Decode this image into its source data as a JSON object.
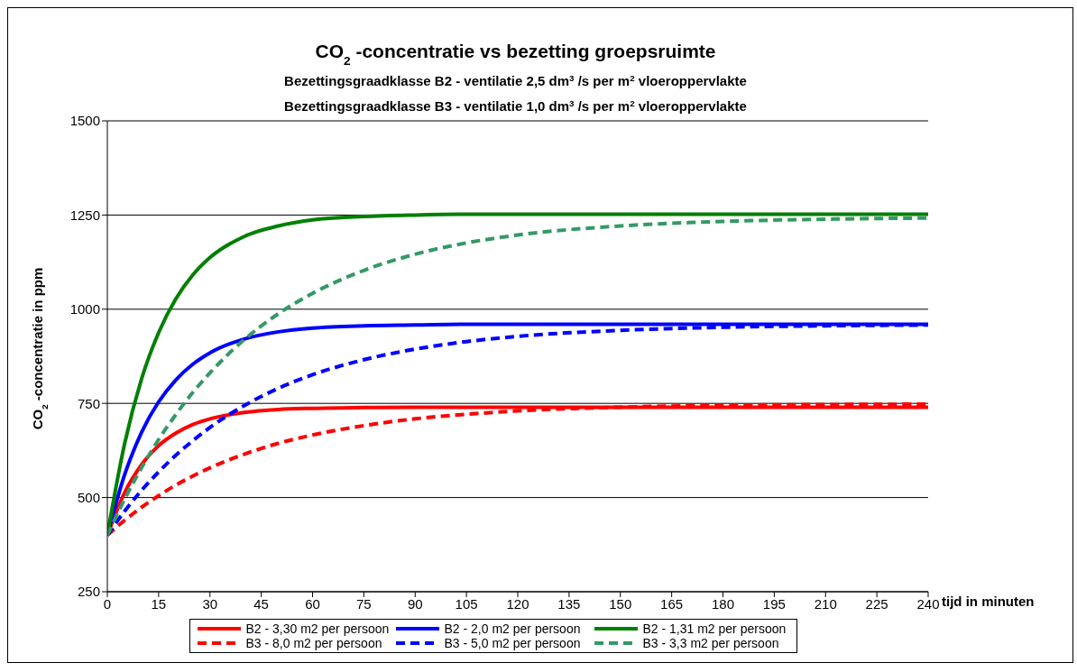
{
  "chart_data": {
    "type": "line",
    "title": "CO$_{2}$-concentratie vs bezetting groepsruimte",
    "subtitle": "Bezettingsgraadklasse B2 - ventilatie 2,5 dm$^{3}$/s per m$^{2}$ vloeroppervlakte\nBezettingsgraadklasse B3 - ventilatie 1,0 dm$^{3}$/s per m$^{2}$ vloeroppervlakte",
    "xlabel": "tijd in minuten",
    "ylabel": "CO$_{2}$-concentratie in ppm",
    "x": [
      0,
      5,
      10,
      15,
      20,
      25,
      30,
      40,
      50,
      60,
      75,
      90,
      105,
      120,
      150,
      180,
      210,
      240
    ],
    "series": [
      {
        "name": "B2 - 3,30 m2 per persoon",
        "color": "#ff0000",
        "line_style": "solid",
        "values": [
          400,
          512,
          587,
          638,
          671,
          694,
          709,
          726,
          734,
          737,
          739,
          740,
          740,
          740,
          740,
          740,
          740,
          740
        ]
      },
      {
        "name": "B2 - 2,0 m2 per persoon",
        "color": "#0000ff",
        "line_style": "solid",
        "values": [
          400,
          559,
          673,
          754,
          812,
          854,
          884,
          921,
          940,
          950,
          956,
          958,
          960,
          960,
          960,
          960,
          960,
          960
        ]
      },
      {
        "name": "B2 - 1,31 m2 per persoon",
        "color": "#008000",
        "line_style": "solid",
        "values": [
          400,
          641,
          815,
          938,
          1027,
          1091,
          1137,
          1193,
          1221,
          1237,
          1246,
          1250,
          1252,
          1252,
          1252,
          1252,
          1252,
          1252
        ]
      },
      {
        "name": "B3 - 8,0 m2 per persoon",
        "color": "#ff0000",
        "line_style": "dashed",
        "values": [
          400,
          439,
          474,
          505,
          533,
          557,
          579,
          615,
          644,
          666,
          691,
          709,
          721,
          730,
          740,
          745,
          747,
          748
        ]
      },
      {
        "name": "B3 - 5,0 m2 per persoon",
        "color": "#0000ff",
        "line_style": "dashed",
        "values": [
          400,
          463,
          519,
          568,
          612,
          651,
          686,
          744,
          790,
          826,
          866,
          894,
          914,
          928,
          944,
          952,
          956,
          958
        ]
      },
      {
        "name": "B3 - 3,3 m2 per persoon",
        "color": "#339966",
        "line_style": "dashed",
        "values": [
          400,
          495,
          579,
          654,
          720,
          779,
          831,
          919,
          988,
          1042,
          1103,
          1146,
          1176,
          1197,
          1221,
          1233,
          1239,
          1242
        ]
      }
    ],
    "xlim": [
      0,
      240
    ],
    "xticks": [
      0,
      15,
      30,
      45,
      60,
      75,
      90,
      105,
      120,
      135,
      150,
      165,
      180,
      195,
      210,
      225,
      240
    ],
    "ylim": [
      250,
      1500
    ],
    "yticks": [
      250,
      500,
      750,
      1000,
      1250,
      1500
    ],
    "grid": "y",
    "legend": "bottom",
    "marker": "none"
  }
}
